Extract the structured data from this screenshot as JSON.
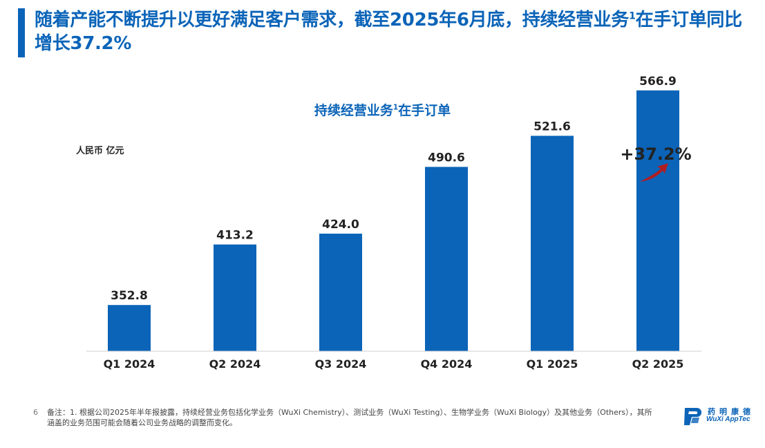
{
  "header": {
    "title_main": "随着产能不断提升以更好满足客户需求，截至2025年6月底，持续经营业务",
    "title_sup": "1",
    "title_tail": "在手订单同比增长37.2%"
  },
  "chart_data": {
    "type": "bar",
    "title": "持续经营业务",
    "title_sup": "1",
    "title_tail": "在手订单",
    "unit_label": "人民币 亿元",
    "categories": [
      "Q1 2024",
      "Q2 2024",
      "Q3 2024",
      "Q4 2024",
      "Q1 2025",
      "Q2 2025"
    ],
    "values": [
      352.8,
      413.2,
      424.0,
      490.6,
      521.6,
      566.9
    ],
    "value_labels": [
      "352.8",
      "413.2",
      "424.0",
      "490.6",
      "521.6",
      "566.9"
    ],
    "ylim": [
      200,
      600
    ],
    "growth_label": "+37.2%",
    "bar_color": "#0b64b8",
    "arrow_color": "#b01e23"
  },
  "footer": {
    "page_number": "6",
    "note_line1": "备注：1. 根据公司2025年半年报披露，持续经营业务包括化学业务（WuXi Chemistry）、测试业务（WuXi Testing）、生物学业务（WuXi Biology）及其他业务（Others），其所",
    "note_line2": "涵盖的业务范围可能会随着公司业务战略的调整而变化。",
    "logo_cn": "药明康德",
    "logo_en": "WuXi AppTec"
  }
}
